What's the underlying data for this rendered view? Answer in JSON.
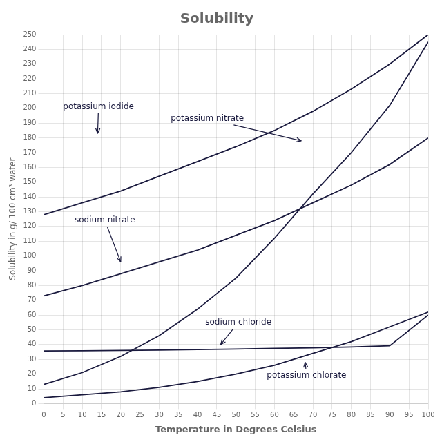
{
  "chart_data": {
    "type": "line",
    "title": "Solubility",
    "x_label": "Temperature in Degrees Celsius",
    "y_label": "Solubility in g/ 100 cm³ water",
    "x": [
      0,
      10,
      20,
      30,
      40,
      50,
      60,
      70,
      80,
      90,
      100
    ],
    "color": "#1a1a3e",
    "series": [
      {
        "values": [
          128,
          136,
          144,
          154,
          164,
          174,
          185,
          198,
          213,
          230,
          250
        ]
      },
      {
        "values": [
          13,
          21,
          32,
          46,
          64,
          85,
          112,
          142,
          170,
          202,
          245
        ]
      },
      {
        "values": [
          73,
          80,
          88,
          96,
          104,
          114,
          124,
          136,
          148,
          162,
          180
        ]
      },
      {
        "values": [
          35.7,
          35.8,
          36.0,
          36.3,
          36.6,
          37.0,
          37.4,
          37.8,
          38.4,
          39.2,
          60
        ]
      },
      {
        "values": [
          4,
          6,
          8,
          11,
          15,
          20,
          26,
          34,
          42,
          52,
          62
        ]
      }
    ],
    "annotations": [
      {
        "text": "potassium iodide",
        "xy": [
          5,
          201
        ],
        "arrow_to": [
          14,
          183
        ]
      },
      {
        "text": "potassium nitrate",
        "xy": [
          33,
          193
        ],
        "arrow_to": [
          67,
          178
        ]
      },
      {
        "text": "sodium nitrate",
        "xy": [
          8,
          124
        ],
        "arrow_to": [
          20,
          96
        ]
      },
      {
        "text": "sodium chloride",
        "xy": [
          42,
          55
        ],
        "arrow_to": [
          46,
          40
        ]
      },
      {
        "text": "potassium chlorate",
        "xy": [
          58,
          19
        ],
        "arrow_to": [
          68,
          28
        ]
      }
    ],
    "xlim": [
      0,
      100
    ],
    "ylim": [
      0,
      250
    ],
    "xticks": [
      0,
      5,
      10,
      15,
      20,
      25,
      30,
      35,
      40,
      45,
      50,
      55,
      60,
      65,
      70,
      75,
      80,
      85,
      90,
      95,
      100
    ],
    "yticks": [
      0,
      10,
      20,
      30,
      40,
      50,
      60,
      70,
      80,
      90,
      100,
      110,
      120,
      130,
      140,
      150,
      160,
      170,
      180,
      190,
      200,
      210,
      220,
      230,
      240,
      250
    ],
    "grid": true
  }
}
